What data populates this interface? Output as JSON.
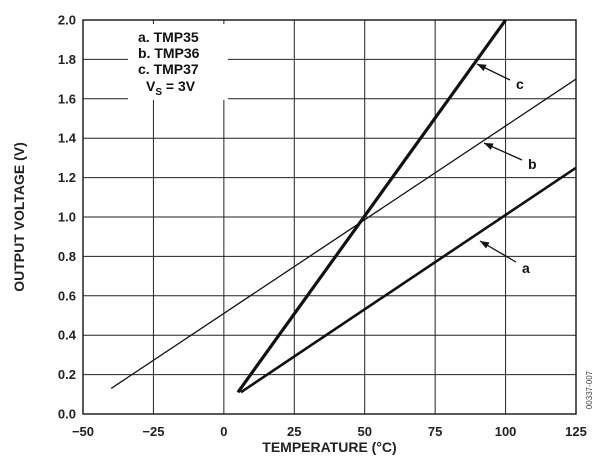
{
  "chart_data": {
    "type": "line",
    "title": "",
    "xlabel": "TEMPERATURE (°C)",
    "ylabel": "OUTPUT VOLTAGE (V)",
    "xlim": [
      -50,
      125
    ],
    "ylim": [
      0,
      2.0
    ],
    "x_ticks": [
      -50,
      -25,
      0,
      25,
      50,
      75,
      100,
      125
    ],
    "y_ticks": [
      0,
      0.2,
      0.4,
      0.6,
      0.8,
      1.0,
      1.2,
      1.4,
      1.6,
      1.8,
      2.0
    ],
    "grid": true,
    "series": [
      {
        "name": "a",
        "x": [
          6,
          125
        ],
        "y": [
          0.11,
          1.25
        ]
      },
      {
        "name": "b",
        "x": [
          -40,
          125
        ],
        "y": [
          0.13,
          1.7
        ]
      },
      {
        "name": "c",
        "x": [
          5,
          100
        ],
        "y": [
          0.11,
          2.0
        ]
      }
    ],
    "legend": {
      "lines": [
        "a.  TMP35",
        "b.  TMP36",
        "c.  TMP37"
      ],
      "supply_main": "V",
      "supply_sub": "S",
      "supply_rest": " = 3V"
    },
    "callouts": [
      {
        "series": "a",
        "label": "a"
      },
      {
        "series": "b",
        "label": "b"
      },
      {
        "series": "c",
        "label": "c"
      }
    ],
    "figure_id": "00337-007",
    "colors": {
      "line": "#111111",
      "grid": "#222222"
    }
  }
}
